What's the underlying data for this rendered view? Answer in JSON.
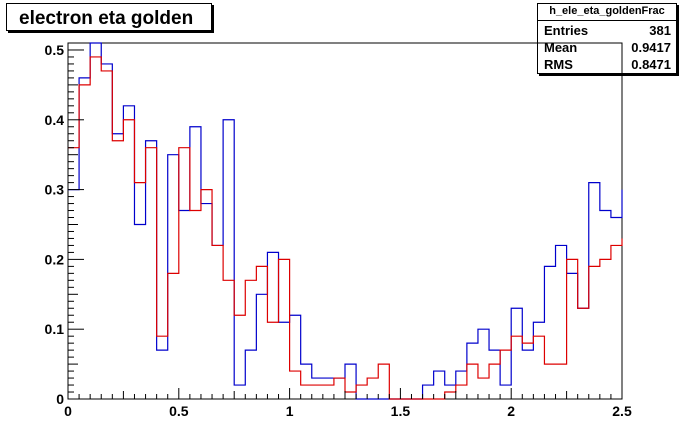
{
  "chart_data": {
    "type": "line",
    "title": "electron eta golden",
    "xlabel": "",
    "ylabel": "",
    "xlim": [
      0,
      2.5
    ],
    "ylim": [
      0,
      0.51
    ],
    "x_ticks": [
      "0",
      "0.5",
      "1",
      "1.5",
      "2",
      "2.5"
    ],
    "y_ticks": [
      "0",
      "0.1",
      "0.2",
      "0.3",
      "0.4",
      "0.5"
    ],
    "y_tick_values": [
      0,
      0.1,
      0.2,
      0.3,
      0.4,
      0.5
    ],
    "x_tick_values": [
      0,
      0.5,
      1,
      1.5,
      2,
      2.5
    ],
    "grid": false,
    "legend": "none",
    "bin_width": 0.05,
    "series": [
      {
        "color": "#0000cc",
        "values": [
          0.3,
          0.46,
          0.51,
          0.48,
          0.38,
          0.42,
          0.25,
          0.37,
          0.07,
          0.35,
          0.27,
          0.39,
          0.28,
          0.22,
          0.4,
          0.02,
          0.07,
          0.15,
          0.21,
          0.11,
          0.12,
          0.05,
          0.03,
          0.03,
          0.03,
          0.05,
          0.0,
          0.0,
          0.0,
          0.0,
          0.0,
          0.0,
          0.02,
          0.04,
          0.02,
          0.04,
          0.08,
          0.1,
          0.07,
          0.02,
          0.13,
          0.07,
          0.11,
          0.19,
          0.22,
          0.18,
          0.13,
          0.31,
          0.27,
          0.26,
          0.3
        ]
      },
      {
        "color": "#dd0000",
        "values": [
          0.36,
          0.45,
          0.49,
          0.47,
          0.37,
          0.4,
          0.31,
          0.36,
          0.09,
          0.18,
          0.36,
          0.27,
          0.3,
          0.22,
          0.17,
          0.12,
          0.17,
          0.19,
          0.11,
          0.2,
          0.04,
          0.02,
          0.02,
          0.02,
          0.03,
          0.01,
          0.02,
          0.03,
          0.05,
          0.0,
          0.0,
          0.0,
          0.0,
          0.0,
          0.01,
          0.02,
          0.05,
          0.03,
          0.05,
          0.07,
          0.09,
          0.08,
          0.09,
          0.05,
          0.05,
          0.2,
          0.13,
          0.19,
          0.2,
          0.22,
          0.23
        ]
      }
    ]
  },
  "stats": {
    "name": "h_ele_eta_goldenFrac",
    "entries_label": "Entries",
    "entries_value": "381",
    "mean_label": "Mean",
    "mean_value": "0.9417",
    "rms_label": "RMS",
    "rms_value": "0.8471"
  }
}
